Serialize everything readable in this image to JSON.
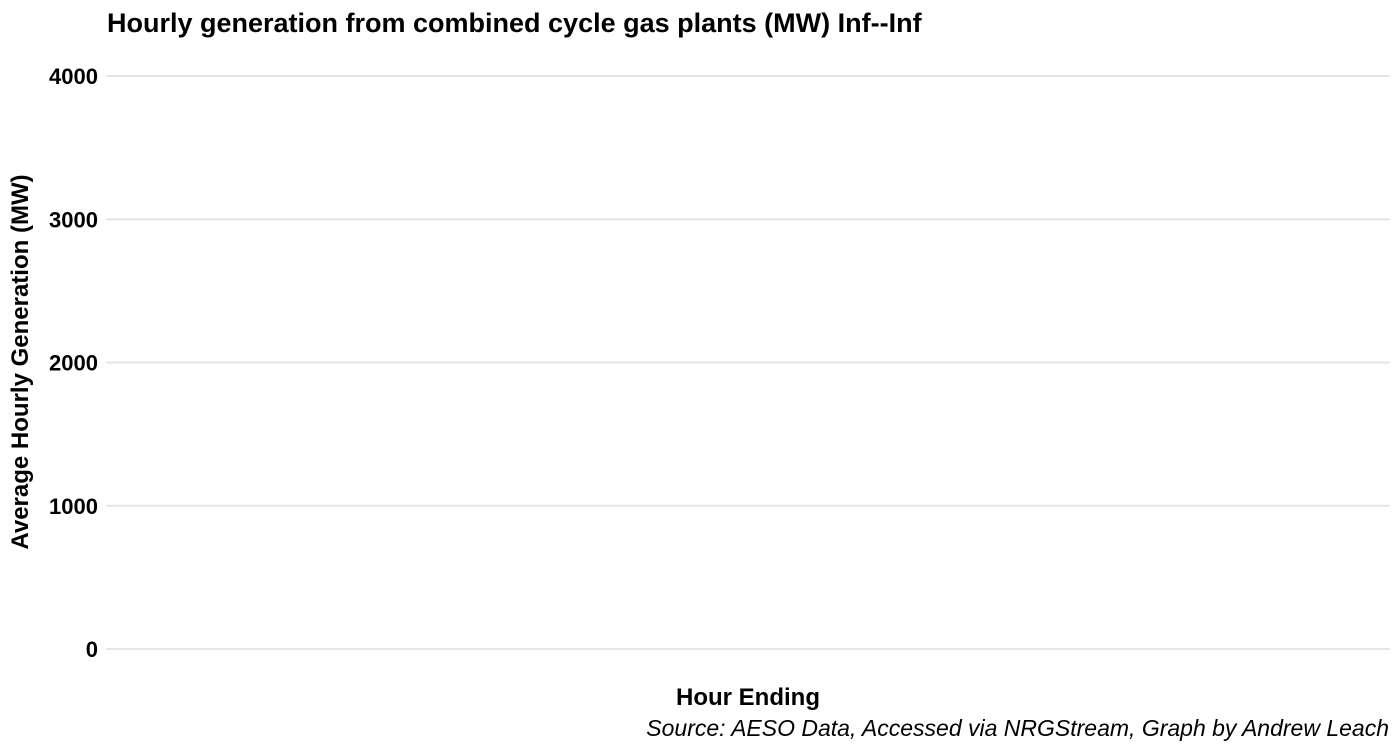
{
  "chart_data": {
    "type": "line",
    "title": "Hourly generation from combined cycle gas plants (MW) Inf--Inf",
    "xlabel": "Hour Ending",
    "ylabel": "Average Hourly Generation (MW)",
    "caption": "Source: AESO Data, Accessed via NRGStream, Graph by Andrew Leach",
    "ylim": [
      0,
      4000
    ],
    "y_ticks": [
      0,
      1000,
      2000,
      3000,
      4000
    ],
    "grid": true,
    "series": []
  }
}
